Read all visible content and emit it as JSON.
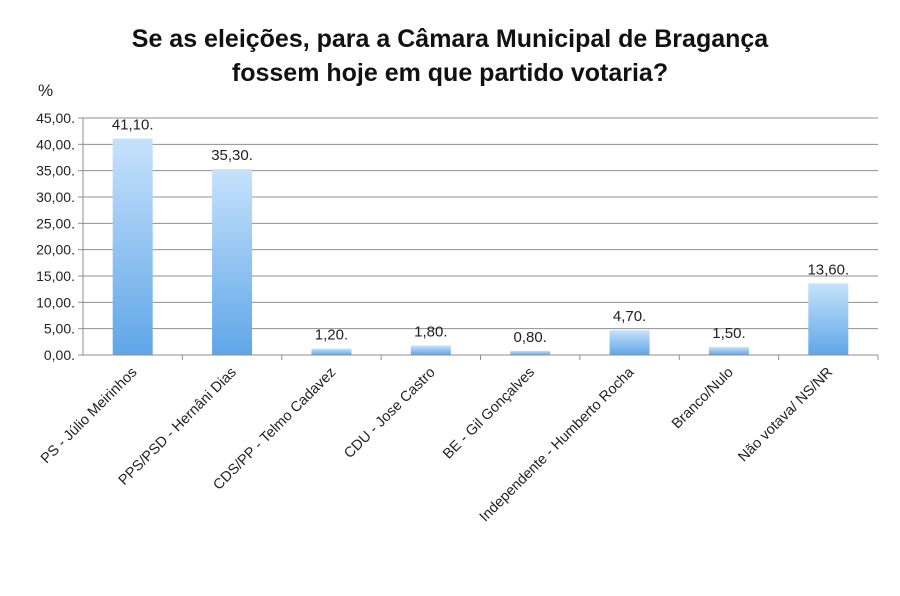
{
  "chart_data": {
    "type": "bar",
    "title_line1": "Se as eleições, para a Câmara Municipal de Bragança",
    "title_line2": "fossem hoje em que partido votaria?",
    "ylabel": "%",
    "ylim": [
      0,
      45
    ],
    "yticks": [
      "0,00.",
      "5,00.",
      "10,00.",
      "15,00.",
      "20,00.",
      "25,00.",
      "30,00.",
      "35,00.",
      "40,00.",
      "45,00."
    ],
    "grid": true,
    "legend": "none",
    "bar_color_top": "#c6e2fb",
    "bar_color_bottom": "#5fa6e8",
    "categories": [
      "PS - Júlio Meirinhos",
      "PPS/PSD - Hernâni Dias",
      "CDS/PP - Telmo Cadavez",
      "CDU - Jose Castro",
      "BE - Gil Gonçalves",
      "Independente - Humberto Rocha",
      "Branco/Nulo",
      "Não votava/ NS/NR"
    ],
    "values": [
      41.1,
      35.3,
      1.2,
      1.8,
      0.8,
      4.7,
      1.5,
      13.6
    ],
    "data_labels": [
      "41,10.",
      "35,30.",
      "1,20.",
      "1,80.",
      "0,80.",
      "4,70.",
      "1,50.",
      "13,60."
    ]
  }
}
